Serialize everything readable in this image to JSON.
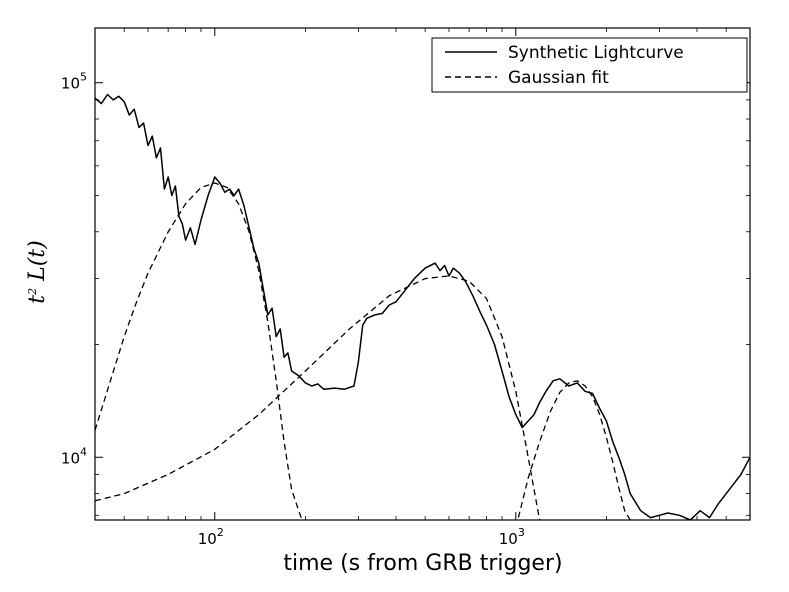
{
  "chart_data": {
    "type": "line",
    "xlabel": "time (s from GRB trigger)",
    "ylabel": "t",
    "ylabel_sup": "2",
    "ylabel_rest": " L(t)",
    "x_scale": "log",
    "y_scale": "log",
    "xlim": [
      40,
      6000
    ],
    "ylim": [
      6800,
      140000
    ],
    "x_ticks": [
      {
        "value": 100,
        "base": "10",
        "exp": "2"
      },
      {
        "value": 1000,
        "base": "10",
        "exp": "3"
      }
    ],
    "y_ticks": [
      {
        "value": 10000,
        "base": "10",
        "exp": "4"
      },
      {
        "value": 100000,
        "base": "10",
        "exp": "5"
      }
    ],
    "grid": false,
    "legend": "top-right",
    "series": [
      {
        "name": "Synthetic Lightcurve",
        "style": "solid",
        "x": [
          40,
          42,
          44,
          46,
          48,
          50,
          52,
          54,
          56,
          58,
          60,
          62,
          64,
          66,
          68,
          70,
          72,
          74,
          76,
          78,
          80,
          83,
          86,
          90,
          95,
          100,
          104,
          108,
          112,
          116,
          120,
          125,
          130,
          135,
          140,
          145,
          150,
          155,
          160,
          165,
          170,
          175,
          180,
          190,
          200,
          210,
          220,
          230,
          250,
          270,
          290,
          300,
          310,
          320,
          340,
          360,
          380,
          400,
          430,
          460,
          500,
          540,
          560,
          580,
          600,
          620,
          650,
          680,
          720,
          760,
          800,
          850,
          900,
          950,
          1000,
          1050,
          1100,
          1150,
          1200,
          1260,
          1330,
          1400,
          1500,
          1600,
          1700,
          1800,
          1900,
          2000,
          2100,
          2200,
          2300,
          2400,
          2600,
          2800,
          3000,
          3200,
          3500,
          3800,
          4100,
          4400,
          4700,
          5000,
          5300,
          5600,
          6000
        ],
        "y": [
          91000,
          88000,
          93000,
          90000,
          92000,
          89000,
          82000,
          85000,
          76000,
          78000,
          68000,
          72000,
          63000,
          67000,
          52000,
          56000,
          50000,
          53000,
          44000,
          42000,
          38000,
          41000,
          37000,
          43000,
          50000,
          56000,
          54000,
          51000,
          52000,
          50000,
          52000,
          47000,
          41000,
          36000,
          33000,
          28000,
          24000,
          25000,
          21000,
          22000,
          18500,
          19000,
          17000,
          16500,
          15800,
          15500,
          15700,
          15200,
          15300,
          15200,
          15500,
          18000,
          22500,
          23500,
          24000,
          24200,
          25500,
          26000,
          28000,
          30000,
          32000,
          33000,
          31500,
          32500,
          30500,
          32000,
          31000,
          29500,
          27000,
          24500,
          22500,
          20000,
          17000,
          14500,
          13000,
          12000,
          12500,
          13000,
          14000,
          15000,
          16000,
          16200,
          15500,
          15800,
          15000,
          14800,
          13500,
          12500,
          11000,
          10000,
          9000,
          8000,
          7200,
          6900,
          7000,
          7100,
          7000,
          6800,
          7200,
          6900,
          7500,
          8000,
          8500,
          9000,
          10000
        ]
      },
      {
        "name": "Gaussian fit",
        "style": "dashed",
        "components": [
          {
            "x": [
              40,
              45,
              50,
              55,
              60,
              70,
              80,
              90,
              100,
              110,
              120,
              130,
              140,
              150,
              160,
              170,
              180,
              190,
              195
            ],
            "y": [
              11800,
              16000,
              21000,
              26000,
              31000,
              40000,
              47500,
              52500,
              54000,
              52500,
              47500,
              40000,
              31500,
              23000,
              16000,
              11000,
              8200,
              7200,
              6800
            ]
          },
          {
            "x": [
              40,
              50,
              70,
              100,
              140,
              200,
              280,
              380,
              500,
              600,
              700,
              800,
              900,
              1000,
              1100,
              1200
            ],
            "y": [
              7650,
              8000,
              9000,
              10500,
              13000,
              17000,
              22000,
              27000,
              30000,
              30500,
              29500,
              26500,
              21000,
              15000,
              10000,
              6800
            ]
          },
          {
            "x": [
              1020,
              1100,
              1200,
              1300,
              1400,
              1500,
              1600,
              1700,
              1800,
              1900,
              2000,
              2100,
              2200,
              2300,
              2400
            ],
            "y": [
              6900,
              8800,
              11000,
              13200,
              14900,
              15800,
              16000,
              15500,
              14500,
              13000,
              11300,
              9700,
              8300,
              7200,
              6800
            ]
          }
        ]
      }
    ]
  }
}
